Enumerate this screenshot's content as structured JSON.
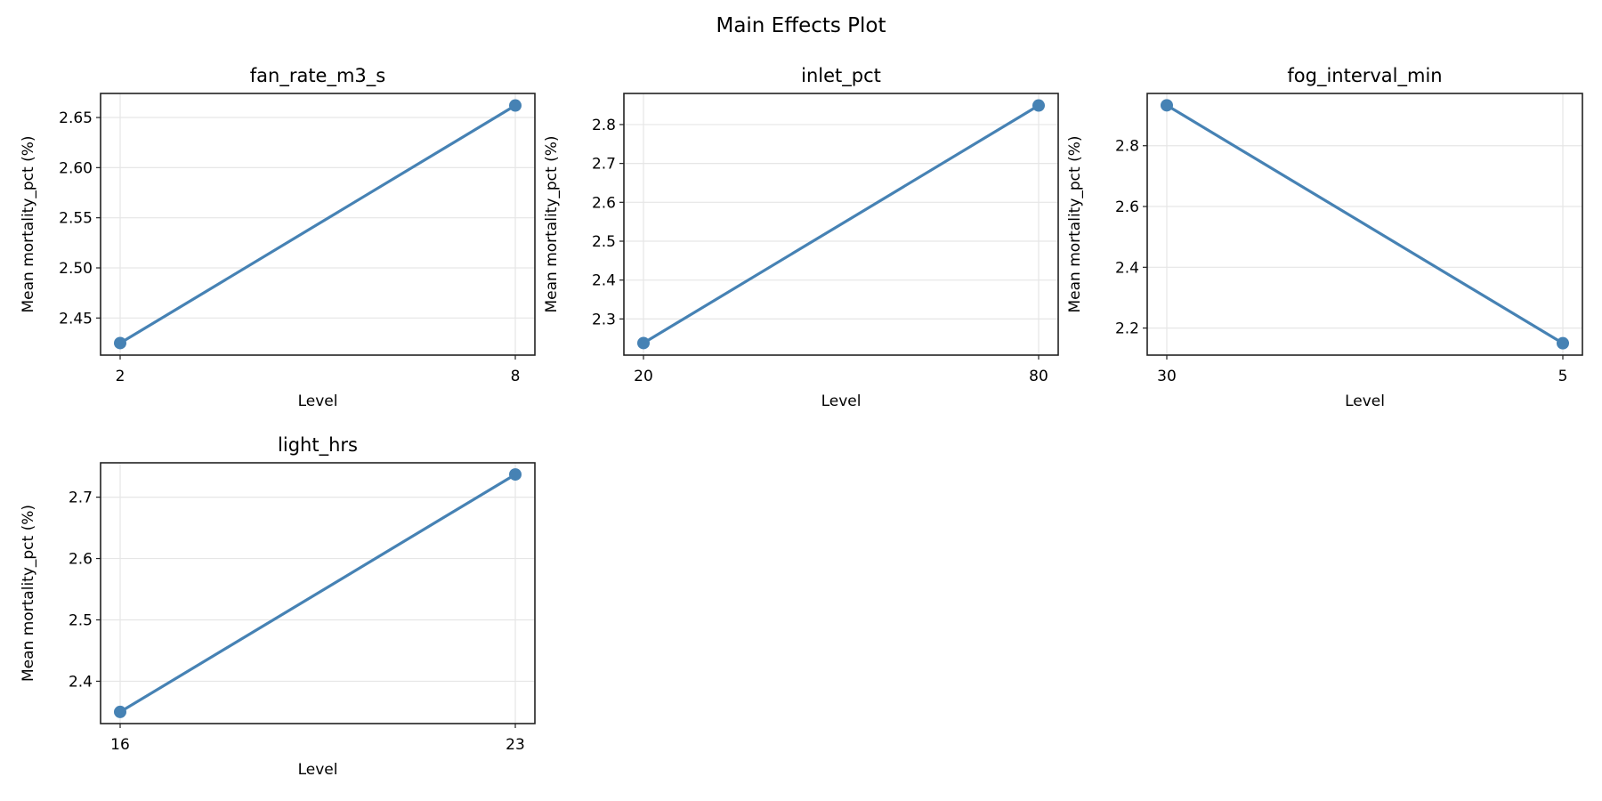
{
  "figure": {
    "title": "Main Effects Plot",
    "line_color": "#4682b4",
    "grid_color": "#e6e6e6",
    "spine_color": "#222222"
  },
  "chart_data": [
    {
      "type": "line",
      "title": "fan_rate_m3_s",
      "xlabel": "Level",
      "ylabel": "Mean mortality_pct (%)",
      "categories": [
        "2",
        "8"
      ],
      "values": [
        2.425,
        2.662
      ],
      "yticks": [
        2.45,
        2.5,
        2.55,
        2.6,
        2.65
      ],
      "ytick_labels": [
        "2.45",
        "2.50",
        "2.55",
        "2.60",
        "2.65"
      ],
      "ylim": [
        2.413,
        2.674
      ],
      "grid": true
    },
    {
      "type": "line",
      "title": "inlet_pct",
      "xlabel": "Level",
      "ylabel": "Mean mortality_pct (%)",
      "categories": [
        "20",
        "80"
      ],
      "values": [
        2.238,
        2.849
      ],
      "yticks": [
        2.3,
        2.4,
        2.5,
        2.6,
        2.7,
        2.8
      ],
      "ytick_labels": [
        "2.3",
        "2.4",
        "2.5",
        "2.6",
        "2.7",
        "2.8"
      ],
      "ylim": [
        2.207,
        2.88
      ],
      "grid": true
    },
    {
      "type": "line",
      "title": "fog_interval_min",
      "xlabel": "Level",
      "ylabel": "Mean mortality_pct (%)",
      "categories": [
        "30",
        "5"
      ],
      "values": [
        2.933,
        2.15
      ],
      "yticks": [
        2.2,
        2.4,
        2.6,
        2.8
      ],
      "ytick_labels": [
        "2.2",
        "2.4",
        "2.6",
        "2.8"
      ],
      "ylim": [
        2.111,
        2.972
      ],
      "grid": true
    },
    {
      "type": "line",
      "title": "light_hrs",
      "xlabel": "Level",
      "ylabel": "Mean mortality_pct (%)",
      "categories": [
        "16",
        "23"
      ],
      "values": [
        2.35,
        2.737
      ],
      "yticks": [
        2.4,
        2.5,
        2.6,
        2.7
      ],
      "ytick_labels": [
        "2.4",
        "2.5",
        "2.6",
        "2.7"
      ],
      "ylim": [
        2.331,
        2.756
      ],
      "grid": true
    }
  ]
}
